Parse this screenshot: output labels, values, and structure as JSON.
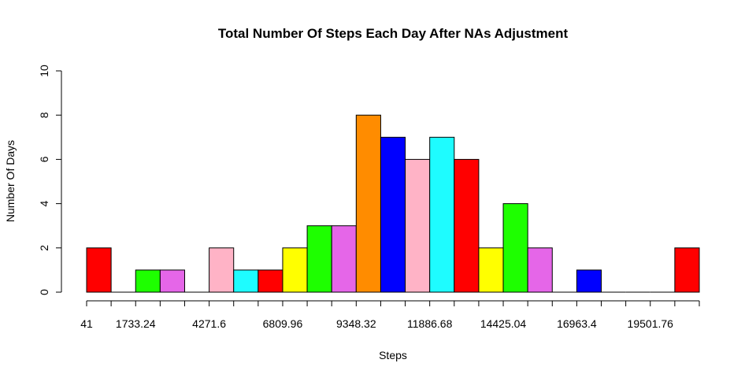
{
  "chart_data": {
    "type": "bar",
    "title": "Total Number Of Steps Each Day After NAs Adjustment",
    "xlabel": "Steps",
    "ylabel": "Number Of Days",
    "ylim": [
      0,
      10
    ],
    "y_ticks": [
      "0",
      "2",
      "4",
      "6",
      "8",
      "10"
    ],
    "x_tick_labels": [
      "41",
      "1733.24",
      "4271.6",
      "6809.96",
      "9348.32",
      "11886.68",
      "14425.04",
      "16963.4",
      "19501.76"
    ],
    "x_tick_label_bins": [
      0,
      2,
      5,
      8,
      11,
      14,
      17,
      20,
      23
    ],
    "bin_count": 25,
    "values": [
      2,
      0,
      1,
      1,
      0,
      2,
      1,
      1,
      2,
      3,
      3,
      8,
      7,
      6,
      7,
      6,
      2,
      4,
      2,
      0,
      1,
      0,
      0,
      0,
      2
    ],
    "colors": [
      "#ff0000",
      "#ffff00",
      "#1eff00",
      "#e566e8",
      "#0000ff",
      "#ffb3c6",
      "#1efcff",
      "#ff0000",
      "#ffff00",
      "#1eff00",
      "#e566e8",
      "#ff8c00",
      "#0000ff",
      "#ffb3c6",
      "#1efcff",
      "#ff0000",
      "#ffff00",
      "#1eff00",
      "#e566e8",
      "#ff8c00",
      "#0000ff",
      "#ffb3c6",
      "#1efcff",
      "#ff0000",
      "#ff0000"
    ],
    "grid": false
  }
}
